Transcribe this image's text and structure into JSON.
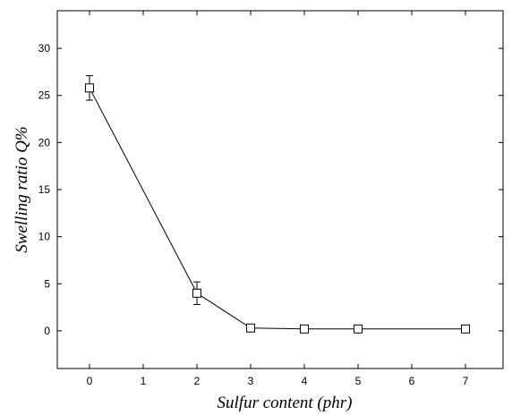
{
  "chart_data": {
    "type": "line",
    "xlabel": "Sulfur content (phr)",
    "ylabel": "Swelling ratio Q%",
    "xlim": [
      -0.6,
      7.7
    ],
    "ylim": [
      -4,
      34
    ],
    "xticks": [
      0,
      1,
      2,
      3,
      4,
      5,
      6,
      7
    ],
    "yticks": [
      0,
      5,
      10,
      15,
      20,
      25,
      30
    ],
    "xtick_labels": [
      "0",
      "1",
      "2",
      "3",
      "4",
      "5",
      "6",
      "7"
    ],
    "ytick_labels": [
      "0",
      "5",
      "10",
      "15",
      "20",
      "25",
      "30"
    ],
    "grid": false,
    "marker": "open-square",
    "series": [
      {
        "x": [
          0,
          2,
          3,
          4,
          5,
          7
        ],
        "y": [
          25.8,
          4.0,
          0.3,
          0.2,
          0.2,
          0.2
        ],
        "error": [
          1.3,
          1.2,
          0.2,
          0.3,
          0.2,
          0.3
        ]
      }
    ],
    "colors": {
      "line": "#000000",
      "axis": "#000000"
    }
  }
}
